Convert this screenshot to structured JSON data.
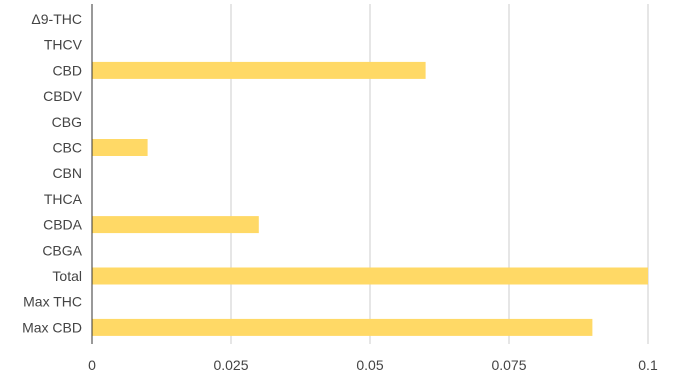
{
  "chart_data": {
    "type": "bar",
    "orientation": "horizontal",
    "categories": [
      "Δ9-THC",
      "THCV",
      "CBD",
      "CBDV",
      "CBG",
      "CBC",
      "CBN",
      "THCA",
      "CBDA",
      "CBGA",
      "Total",
      "Max THC",
      "Max CBD"
    ],
    "values": [
      0,
      0,
      0.06,
      0,
      0,
      0.01,
      0,
      0,
      0.03,
      0,
      0.1,
      0,
      0.09
    ],
    "xlim": [
      0,
      0.1
    ],
    "x_ticks": [
      0,
      0.025,
      0.05,
      0.075,
      0.1
    ],
    "x_tick_labels": [
      "0",
      "0.025",
      "0.05",
      "0.075",
      "0.1"
    ],
    "grid": true,
    "legend": "none",
    "bar_color": "#ffd966",
    "grid_color": "#cccccc",
    "axis_color": "#333333"
  }
}
